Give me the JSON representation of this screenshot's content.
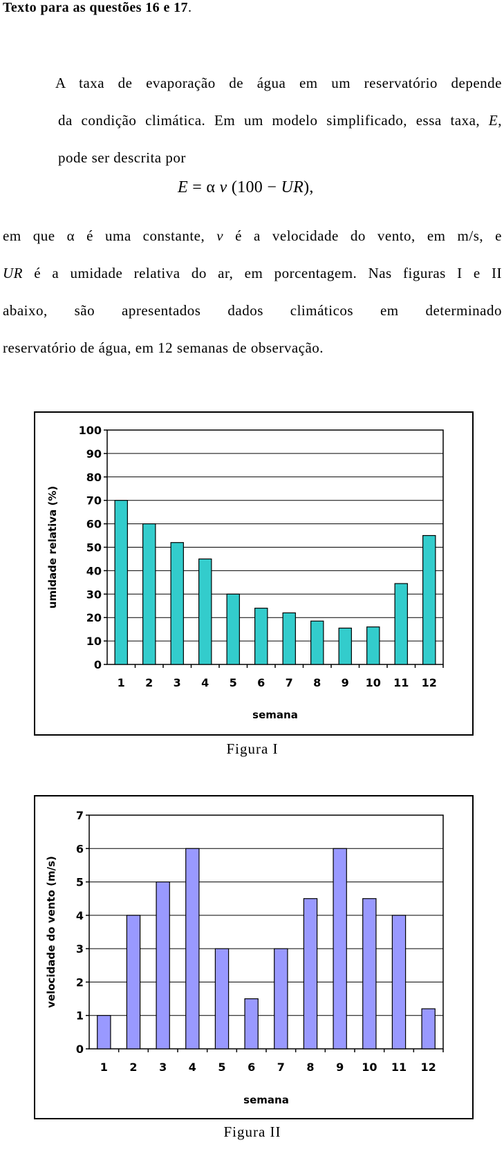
{
  "heading": {
    "text": "Texto para as questões 16 e 17",
    "period": "."
  },
  "para1": {
    "line1": "A taxa de evaporação de água em um reservatório depende",
    "line2a": "da condição climática. Em um modelo simplificado, essa taxa, ",
    "line2_E": "E",
    "line2b": ",",
    "line3": "pode ser descrita por"
  },
  "formula": {
    "E": "E",
    "eq": " = ",
    "alpha": "α",
    "v": "v",
    "open": " (100 − ",
    "UR": "UR",
    "close": "),"
  },
  "para2": {
    "l1a": "em que ",
    "l1_alpha": "α",
    "l1b": " é uma constante, ",
    "l1_v": "v",
    "l1c": " é a velocidade do vento, em m/s, e",
    "l2_UR": "UR",
    "l2b": " é a umidade relativa do ar, em porcentagem. Nas figuras I e II",
    "l3": "abaixo, são apresentados dados climáticos em determinado",
    "l4": "reservatório de água, em 12 semanas de observação."
  },
  "captions": {
    "fig1": "Figura I",
    "fig2": "Figura II"
  },
  "colors": {
    "fig1_bar": "#33cccc",
    "fig2_bar": "#9999ff"
  },
  "chart_data": [
    {
      "type": "bar",
      "title": "",
      "xlabel": "semana",
      "ylabel": "umidade relativa (%)",
      "categories": [
        "1",
        "2",
        "3",
        "4",
        "5",
        "6",
        "7",
        "8",
        "9",
        "10",
        "11",
        "12"
      ],
      "values": [
        70,
        60,
        52,
        45,
        30,
        24,
        22,
        18.5,
        15.5,
        16,
        34.5,
        55
      ],
      "ylim": [
        0,
        100
      ],
      "yticks": [
        "0",
        "10",
        "20",
        "30",
        "40",
        "50",
        "60",
        "70",
        "80",
        "90",
        "100"
      ],
      "grid": true,
      "color": "#33cccc"
    },
    {
      "type": "bar",
      "title": "",
      "xlabel": "semana",
      "ylabel": "velocidade do vento (m/s)",
      "categories": [
        "1",
        "2",
        "3",
        "4",
        "5",
        "6",
        "7",
        "8",
        "9",
        "10",
        "11",
        "12"
      ],
      "values": [
        1,
        4,
        5,
        6,
        3,
        1.5,
        3,
        4.5,
        6,
        4.5,
        4,
        1.2
      ],
      "ylim": [
        0,
        7
      ],
      "yticks": [
        "0",
        "1",
        "2",
        "3",
        "4",
        "5",
        "6",
        "7"
      ],
      "grid": true,
      "color": "#9999ff"
    }
  ]
}
